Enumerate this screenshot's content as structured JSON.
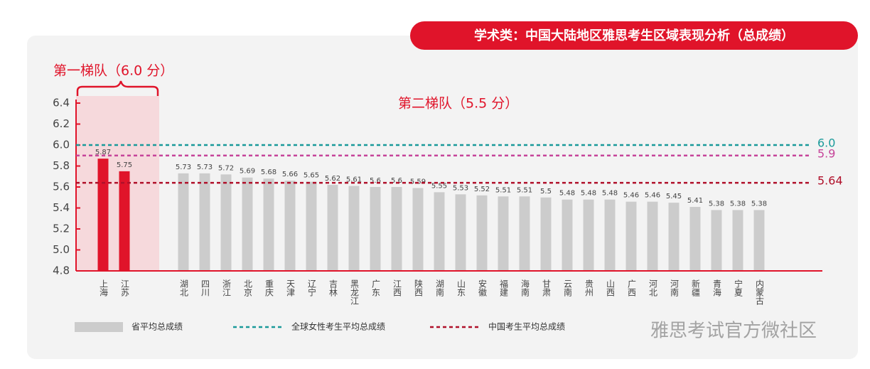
{
  "chart_data": {
    "type": "bar",
    "title": "学术类：中国大陆地区雅思考生区域表现分析（总成绩）",
    "groups": [
      {
        "name": "第一梯队（6.0 分）",
        "color": "#e0142a",
        "categories": [
          "上海",
          "江苏"
        ],
        "values": [
          5.87,
          5.75
        ]
      },
      {
        "name": "第二梯队（5.5 分）",
        "color": "#cccccc",
        "categories": [
          "湖北",
          "四川",
          "浙江",
          "北京",
          "重庆",
          "天津",
          "辽宁",
          "吉林",
          "黑龙江",
          "广东",
          "江西",
          "陕西",
          "湖南",
          "山东",
          "安徽",
          "福建",
          "海南",
          "甘肃",
          "云南",
          "贵州",
          "山西",
          "广西",
          "河北",
          "河南",
          "新疆",
          "青海",
          "宁夏",
          "内蒙古"
        ],
        "values": [
          5.73,
          5.73,
          5.72,
          5.69,
          5.68,
          5.66,
          5.65,
          5.62,
          5.61,
          5.6,
          5.6,
          5.59,
          5.55,
          5.53,
          5.52,
          5.51,
          5.51,
          5.5,
          5.48,
          5.48,
          5.48,
          5.46,
          5.46,
          5.45,
          5.41,
          5.38,
          5.38,
          5.38
        ]
      }
    ],
    "bar_legend": "省平均总成绩",
    "reference_lines": [
      {
        "name": "全球女性考生平均总成绩",
        "value": 6.0,
        "label": "6.0",
        "color": "#1a9a9a"
      },
      {
        "value": 5.9,
        "label": "5.9",
        "color": "#c6449a"
      },
      {
        "name": "中国考生平均总成绩",
        "value": 5.64,
        "label": "5.64",
        "color": "#b0102a"
      }
    ],
    "ylim": [
      4.8,
      6.4
    ],
    "yticks": [
      4.8,
      {
        "value": 5.0,
        "label": "5.0"
      },
      5.2,
      5.4,
      5.6,
      5.8,
      {
        "value": 6.0,
        "label": "6.0"
      },
      6.2,
      6.4
    ],
    "watermark": "雅思考试官方微社区"
  }
}
